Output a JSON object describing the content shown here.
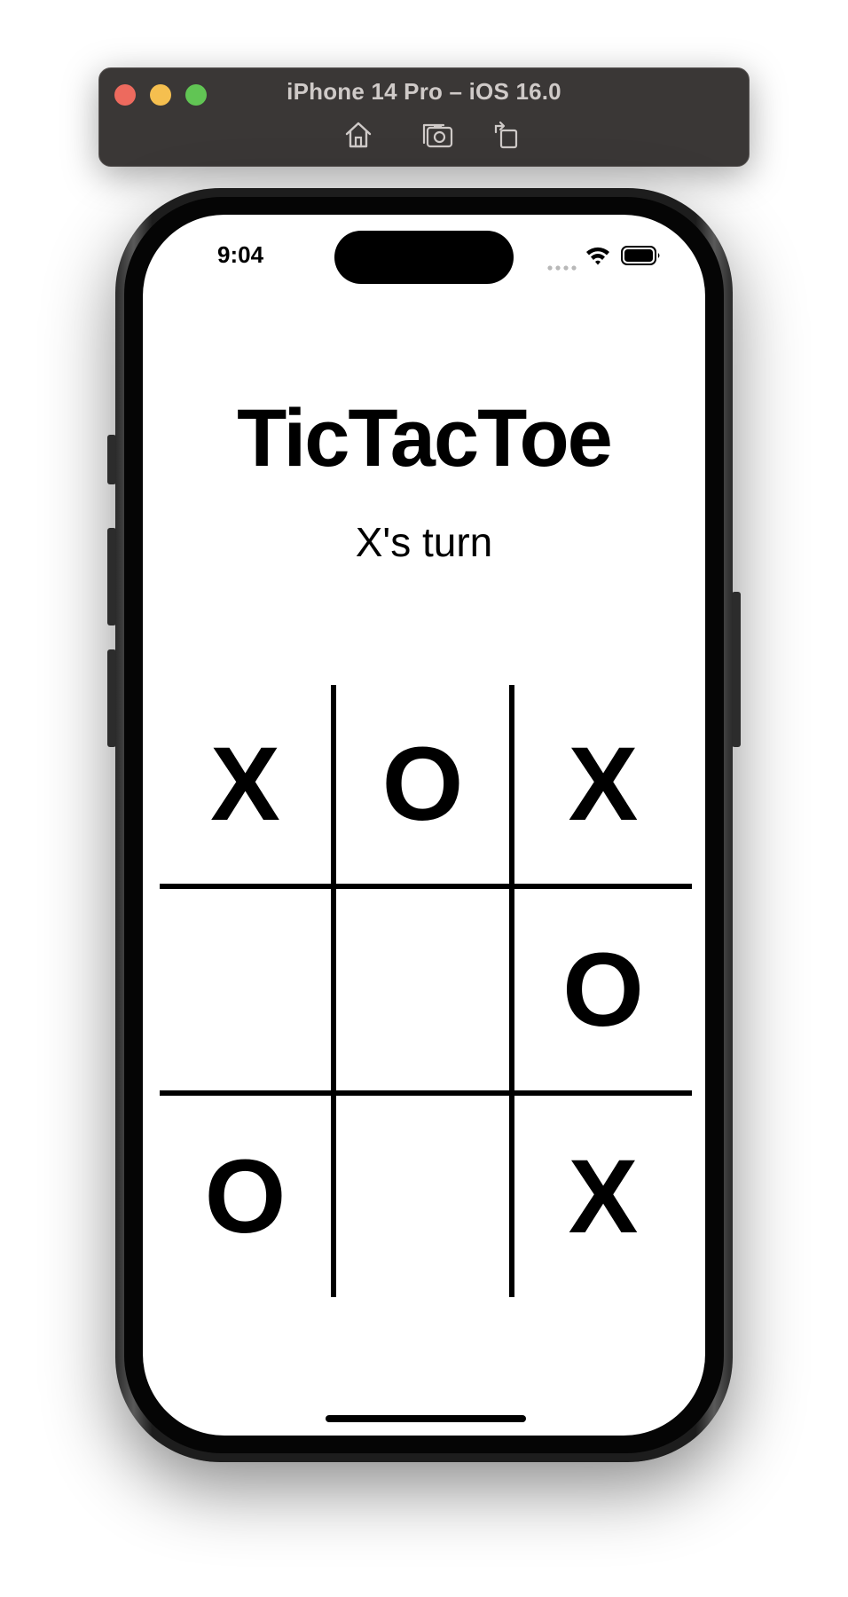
{
  "simulator": {
    "title": "iPhone 14 Pro – iOS 16.0",
    "traffic_colors": {
      "close": "#ed6a5e",
      "minimize": "#f5bf4f",
      "zoom": "#61c554"
    },
    "tools": [
      "home-icon",
      "screenshot-icon",
      "rotate-icon"
    ]
  },
  "status_bar": {
    "time": "9:04",
    "icons": [
      "cellular-dots-icon",
      "wifi-icon",
      "battery-icon"
    ]
  },
  "app": {
    "title": "TicTacToe",
    "turn": "X's turn",
    "board": [
      [
        "X",
        "O",
        "X"
      ],
      [
        "",
        "",
        "O"
      ],
      [
        "O",
        "",
        "X"
      ]
    ]
  }
}
